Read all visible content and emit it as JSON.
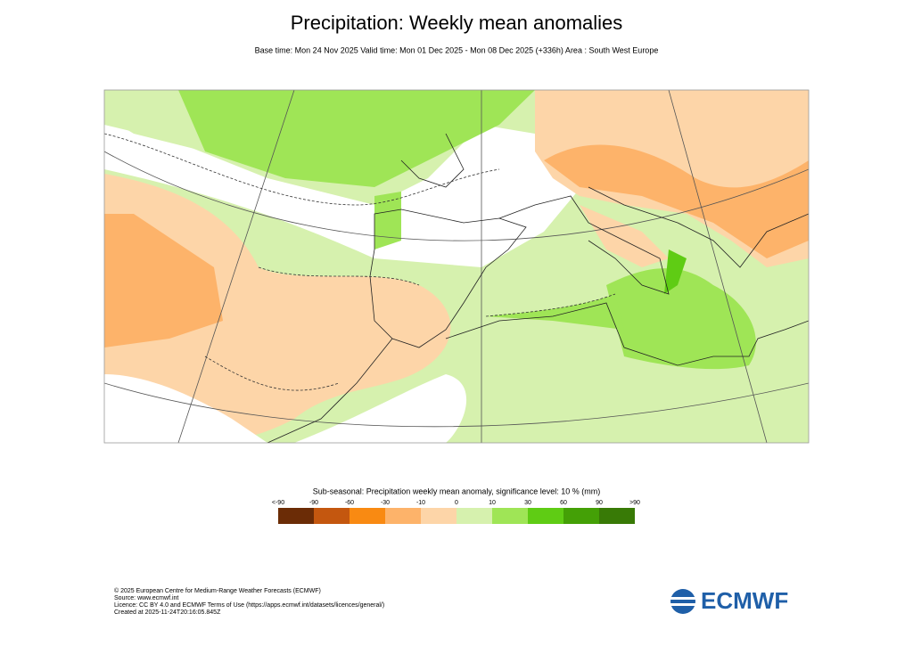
{
  "title": "Precipitation: Weekly mean anomalies",
  "subtitle": "Base time: Mon 24 Nov 2025 Valid time: Mon 01 Dec 2025 - Mon 08 Dec 2025 (+336h) Area : South West Europe",
  "legend": {
    "title": "Sub-seasonal: Precipitation weekly mean anomaly, significance level: 10 % (mm)",
    "labels": [
      "<-90",
      "-90",
      "-60",
      "-30",
      "-10",
      "0",
      "10",
      "30",
      "60",
      "90",
      ">90"
    ],
    "colors": [
      "#6b2c06",
      "#c4570f",
      "#f98a12",
      "#fdb36a",
      "#fdd5a8",
      "#d6f1ae",
      "#9fe556",
      "#5fcc14",
      "#44a006",
      "#387a06"
    ]
  },
  "footer": [
    "© 2025 European Centre for Medium-Range Weather Forecasts (ECMWF)",
    "Source: www.ecmwf.int",
    "Licence: CC BY 4.0 and ECMWF Terms of Use (https://apps.ecmwf.int/datasets/licences/general/)",
    "Created at 2025-11-24T20:16:05.845Z"
  ],
  "logo": "ECMWF"
}
